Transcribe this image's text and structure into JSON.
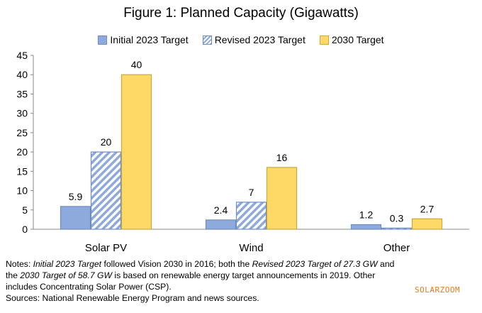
{
  "chart_data": {
    "type": "bar",
    "title": "Figure 1: Planned Capacity (Gigawatts)",
    "categories": [
      "Solar PV",
      "Wind",
      "Other"
    ],
    "series": [
      {
        "name": "Initial 2023 Target",
        "values": [
          5.9,
          2.4,
          1.2
        ],
        "labels": [
          "5.9",
          "2.4",
          "1.2"
        ],
        "color": "#8EA9DB",
        "pattern": "solid"
      },
      {
        "name": "Revised 2023 Target",
        "values": [
          20,
          7,
          0.3
        ],
        "labels": [
          "20",
          "7",
          "0.3"
        ],
        "color": "#8EA9DB",
        "pattern": "diagonal-stripes"
      },
      {
        "name": "2030 Target",
        "values": [
          40,
          16,
          2.7
        ],
        "labels": [
          "40",
          "16",
          "2.7"
        ],
        "color": "#FFD966",
        "pattern": "solid"
      }
    ],
    "ylim": [
      0,
      45
    ],
    "yticks": [
      "0",
      "5",
      "10",
      "15",
      "20",
      "25",
      "30",
      "35",
      "40",
      "45"
    ],
    "grid": false,
    "legend_position": "top"
  },
  "notes": {
    "line1_a": "Notes: ",
    "line1_b": "Initial 2023 Target",
    "line1_c": " followed Vision 2030 in 2016; both the ",
    "line1_d": "Revised 2023 Target of 27.3 GW",
    "line1_e": " and",
    "line2_a": "the ",
    "line2_b": "2030 Target of 58.7 GW",
    "line2_c": " is based on renewable energy target announcements in 2019. Other",
    "line3": "includes Concentrating Solar Power (CSP).",
    "sources": "Sources: National Renewable Energy Program and news sources."
  },
  "watermark": "SOLARZOOM"
}
